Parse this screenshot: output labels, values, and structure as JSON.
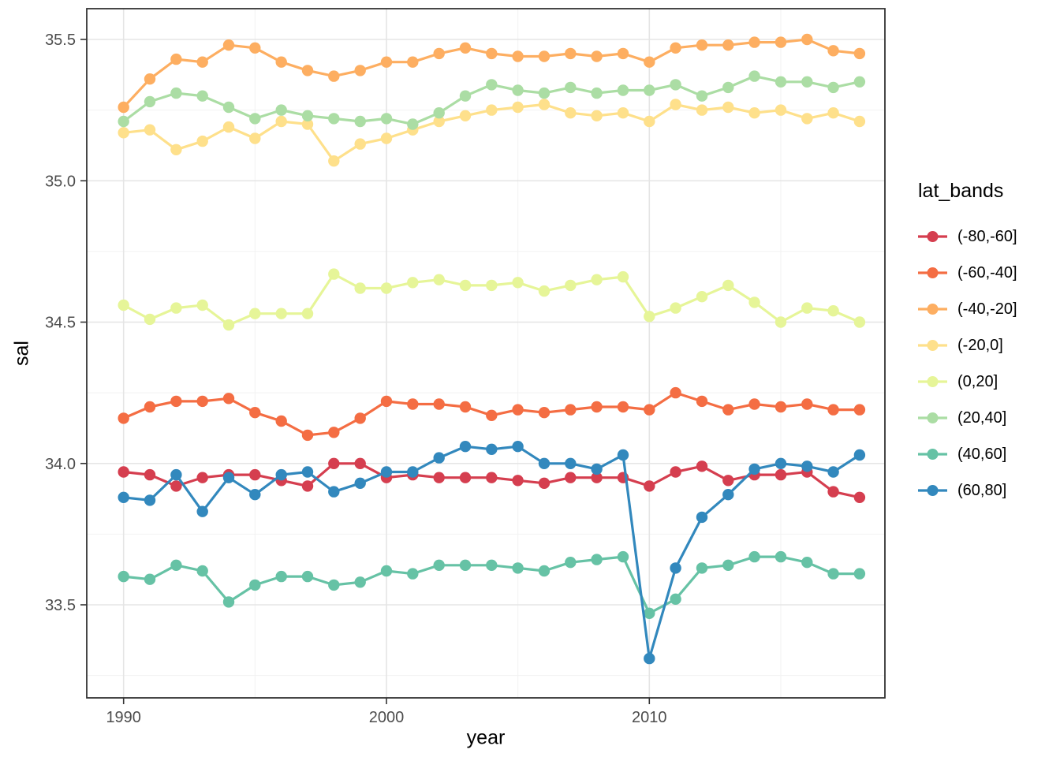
{
  "chart_data": {
    "type": "line",
    "title": "",
    "xlabel": "year",
    "ylabel": "sal",
    "legend_title": "lat_bands",
    "legend_position": "right",
    "grid": true,
    "background": "#ffffff",
    "xlim": [
      1988.6,
      2019.4
    ],
    "ylim": [
      33.17,
      35.61
    ],
    "x_ticks": {
      "major": [
        1990,
        2000,
        2010
      ],
      "labels": [
        "1990",
        "2000",
        "2010"
      ],
      "minor": [
        1995,
        2005,
        2015
      ]
    },
    "y_ticks": {
      "major": [
        33.5,
        34.0,
        34.5,
        35.0,
        35.5
      ],
      "labels": [
        "33.5",
        "34.0",
        "34.5",
        "35.0",
        "35.5"
      ],
      "minor": [
        33.25,
        33.75,
        34.25,
        34.75,
        35.25
      ]
    },
    "x": [
      1990,
      1991,
      1992,
      1993,
      1994,
      1995,
      1996,
      1997,
      1998,
      1999,
      2000,
      2001,
      2002,
      2003,
      2004,
      2005,
      2006,
      2007,
      2008,
      2009,
      2010,
      2011,
      2012,
      2013,
      2014,
      2015,
      2016,
      2017,
      2018
    ],
    "series": [
      {
        "name": "(-80,-60]",
        "color": "#D53E4F",
        "values": [
          33.97,
          33.96,
          33.92,
          33.95,
          33.96,
          33.96,
          33.94,
          33.92,
          34.0,
          34.0,
          33.95,
          33.96,
          33.95,
          33.95,
          33.95,
          33.94,
          33.93,
          33.95,
          33.95,
          33.95,
          33.92,
          33.97,
          33.99,
          33.94,
          33.96,
          33.96,
          33.97,
          33.9,
          33.88
        ]
      },
      {
        "name": "(-60,-40]",
        "color": "#F46D43",
        "values": [
          34.16,
          34.2,
          34.22,
          34.22,
          34.23,
          34.18,
          34.15,
          34.1,
          34.11,
          34.16,
          34.22,
          34.21,
          34.21,
          34.2,
          34.17,
          34.19,
          34.18,
          34.19,
          34.2,
          34.2,
          34.19,
          34.25,
          34.22,
          34.19,
          34.21,
          34.2,
          34.21,
          34.19,
          34.19
        ]
      },
      {
        "name": "(-40,-20]",
        "color": "#FDAE61",
        "values": [
          35.26,
          35.36,
          35.43,
          35.42,
          35.48,
          35.47,
          35.42,
          35.39,
          35.37,
          35.39,
          35.42,
          35.42,
          35.45,
          35.47,
          35.45,
          35.44,
          35.44,
          35.45,
          35.44,
          35.45,
          35.42,
          35.47,
          35.48,
          35.48,
          35.49,
          35.49,
          35.5,
          35.46,
          35.45
        ]
      },
      {
        "name": "(-20,0]",
        "color": "#FEE08B",
        "values": [
          35.17,
          35.18,
          35.11,
          35.14,
          35.19,
          35.15,
          35.21,
          35.2,
          35.07,
          35.13,
          35.15,
          35.18,
          35.21,
          35.23,
          35.25,
          35.26,
          35.27,
          35.24,
          35.23,
          35.24,
          35.21,
          35.27,
          35.25,
          35.26,
          35.24,
          35.25,
          35.22,
          35.24,
          35.21
        ]
      },
      {
        "name": "(0,20]",
        "color": "#E6F598",
        "values": [
          34.56,
          34.51,
          34.55,
          34.56,
          34.49,
          34.53,
          34.53,
          34.53,
          34.67,
          34.62,
          34.62,
          34.64,
          34.65,
          34.63,
          34.63,
          34.64,
          34.61,
          34.63,
          34.65,
          34.66,
          34.52,
          34.55,
          34.59,
          34.63,
          34.57,
          34.5,
          34.55,
          34.54,
          34.5
        ]
      },
      {
        "name": "(20,40]",
        "color": "#ABDDA4",
        "values": [
          35.21,
          35.28,
          35.31,
          35.3,
          35.26,
          35.22,
          35.25,
          35.23,
          35.22,
          35.21,
          35.22,
          35.2,
          35.24,
          35.3,
          35.34,
          35.32,
          35.31,
          35.33,
          35.31,
          35.32,
          35.32,
          35.34,
          35.3,
          35.33,
          35.37,
          35.35,
          35.35,
          35.33,
          35.35
        ]
      },
      {
        "name": "(40,60]",
        "color": "#66C2A5",
        "values": [
          33.6,
          33.59,
          33.64,
          33.62,
          33.51,
          33.57,
          33.6,
          33.6,
          33.57,
          33.58,
          33.62,
          33.61,
          33.64,
          33.64,
          33.64,
          33.63,
          33.62,
          33.65,
          33.66,
          33.67,
          33.47,
          33.52,
          33.63,
          33.64,
          33.67,
          33.67,
          33.65,
          33.61,
          33.61
        ]
      },
      {
        "name": "(60,80]",
        "color": "#3288BD",
        "values": [
          33.88,
          33.87,
          33.96,
          33.83,
          33.95,
          33.89,
          33.96,
          33.97,
          33.9,
          33.93,
          33.97,
          33.97,
          34.02,
          34.06,
          34.05,
          34.06,
          34.0,
          34.0,
          33.98,
          34.03,
          33.31,
          33.63,
          33.81,
          33.89,
          33.98,
          34.0,
          33.99,
          33.97,
          34.03
        ]
      }
    ]
  }
}
